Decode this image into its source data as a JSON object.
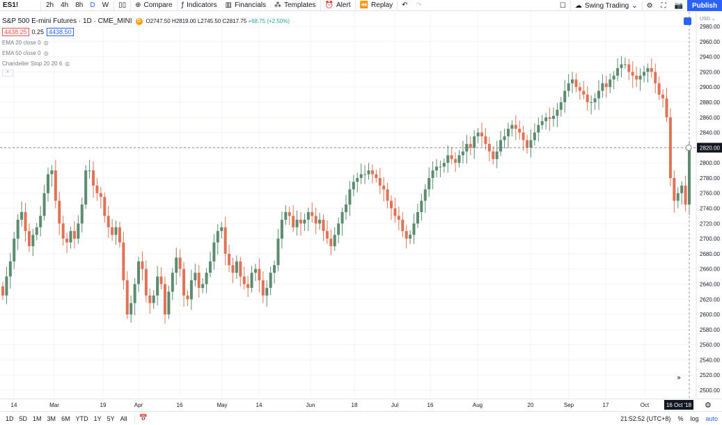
{
  "toolbar": {
    "symbol": "ES1!",
    "timeframes": [
      "2h",
      "4h",
      "8h",
      "D",
      "W"
    ],
    "compare": "Compare",
    "indicators": "Indicators",
    "financials": "Financials",
    "templates": "Templates",
    "alert": "Alert",
    "replay": "Replay",
    "layout_name": "Swing Trading",
    "publish": "Publish"
  },
  "legend": {
    "title": "S&P 500 E-mini Futures · 1D · CME_MINI",
    "badge": "D",
    "open": "O2747.50",
    "high": "H2819.00",
    "low": "L2745.50",
    "close": "C2817.75",
    "change": "+68.75 (+2.50%)",
    "sell_price": "4438.25",
    "spread": "0.25",
    "buy_price": "4438.50",
    "indicators": [
      "EMA 20 close 0",
      "EMA 50 close 0",
      "Chandelier Stop 20 20 6"
    ],
    "collapse": "^"
  },
  "price_axis": {
    "currency": "USD",
    "labels": [
      "2980.00",
      "2960.00",
      "2940.00",
      "2920.00",
      "2900.00",
      "2880.00",
      "2860.00",
      "2840.00",
      "2820.00",
      "2800.00",
      "2780.00",
      "2760.00",
      "2740.00",
      "2720.00",
      "2700.00",
      "2680.00",
      "2660.00",
      "2640.00",
      "2620.00",
      "2600.00",
      "2580.00",
      "2560.00",
      "2540.00",
      "2520.00",
      "2500.00"
    ],
    "current": "2820.00"
  },
  "time_axis": {
    "labels": [
      "14",
      "Mar",
      "19",
      "Apr",
      "16",
      "May",
      "14",
      "Jun",
      "18",
      "Jul",
      "16",
      "Aug",
      "20",
      "Sep",
      "17",
      "Oct"
    ],
    "cursor_label": "16 Oct '18"
  },
  "bottom_bar": {
    "ranges": [
      "1D",
      "5D",
      "1M",
      "3M",
      "6M",
      "YTD",
      "1Y",
      "5Y",
      "All"
    ],
    "time": "21:52:52 (UTC+8)",
    "percent": "%",
    "log": "log",
    "auto": "auto"
  },
  "colors": {
    "up": "#5b8c6f",
    "down": "#e07355",
    "accent": "#2962ff"
  },
  "chart_data": {
    "type": "candlestick",
    "title": "S&P 500 E-mini Futures · 1D · CME_MINI",
    "ylim": [
      2500,
      2980
    ],
    "grid": true,
    "close": [
      2625,
      2650,
      2670,
      2700,
      2725,
      2735,
      2710,
      2690,
      2705,
      2715,
      2730,
      2760,
      2785,
      2790,
      2750,
      2720,
      2700,
      2695,
      2710,
      2700,
      2720,
      2745,
      2790,
      2790,
      2770,
      2760,
      2755,
      2730,
      2715,
      2705,
      2715,
      2695,
      2645,
      2600,
      2615,
      2640,
      2670,
      2660,
      2625,
      2615,
      2625,
      2650,
      2640,
      2600,
      2630,
      2655,
      2675,
      2660,
      2625,
      2620,
      2645,
      2655,
      2635,
      2640,
      2655,
      2670,
      2695,
      2710,
      2715,
      2680,
      2665,
      2655,
      2670,
      2650,
      2640,
      2635,
      2655,
      2660,
      2645,
      2625,
      2635,
      2655,
      2665,
      2700,
      2725,
      2735,
      2730,
      2715,
      2725,
      2720,
      2725,
      2735,
      2730,
      2720,
      2725,
      2710,
      2700,
      2690,
      2705,
      2720,
      2735,
      2745,
      2765,
      2775,
      2780,
      2785,
      2785,
      2790,
      2785,
      2780,
      2770,
      2765,
      2750,
      2740,
      2730,
      2725,
      2710,
      2700,
      2705,
      2720,
      2735,
      2750,
      2765,
      2780,
      2790,
      2795,
      2795,
      2800,
      2810,
      2805,
      2800,
      2810,
      2815,
      2825,
      2820,
      2835,
      2840,
      2835,
      2825,
      2815,
      2805,
      2815,
      2830,
      2835,
      2845,
      2850,
      2845,
      2840,
      2830,
      2820,
      2830,
      2840,
      2850,
      2855,
      2860,
      2858,
      2862,
      2870,
      2880,
      2895,
      2905,
      2910,
      2900,
      2895,
      2890,
      2880,
      2880,
      2885,
      2895,
      2905,
      2900,
      2910,
      2915,
      2925,
      2930,
      2930,
      2920,
      2915,
      2910,
      2915,
      2920,
      2925,
      2920,
      2905,
      2890,
      2885,
      2860,
      2780,
      2750,
      2760,
      2770,
      2745,
      2818
    ]
  }
}
